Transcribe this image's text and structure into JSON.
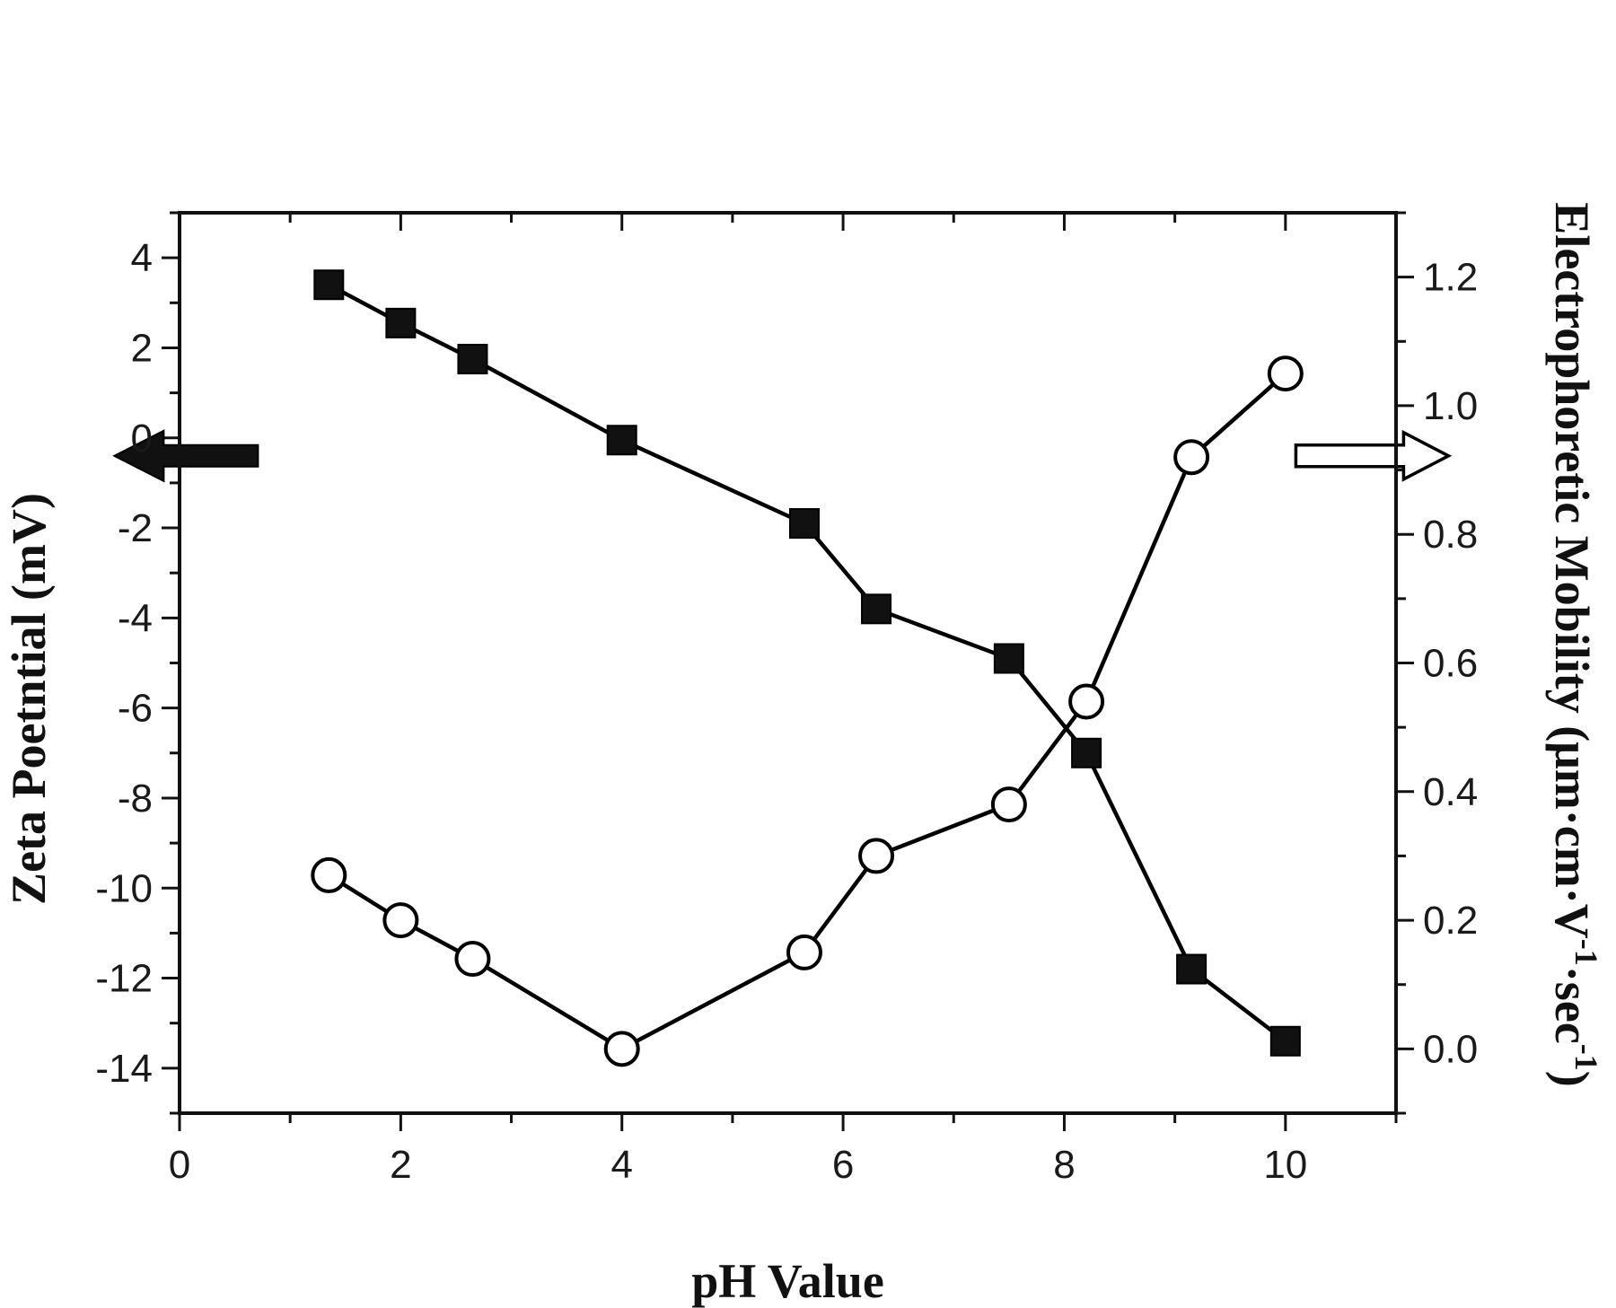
{
  "colors": {
    "axis": "#111111",
    "line": "#000000",
    "marker_fill_open": "#ffffff",
    "marker_fill_solid": "#111111"
  },
  "chart_data": {
    "type": "line",
    "xlabel": "pH Value",
    "ylabel_left": "Zeta Poetntial (mV)",
    "ylabel_right": "Electrophoretic Mobility (μm·cm·V⁻¹·sec⁻¹)",
    "ylabel_right_parts": {
      "main": "Electrophoretic Mobility (μm·cm·V",
      "sup1": "-1",
      "mid": "·sec",
      "sup2": "-1",
      "end": ")"
    },
    "xlim": [
      0,
      11
    ],
    "ylim_left": [
      -15,
      5
    ],
    "ylim_right": [
      -0.1,
      1.3
    ],
    "xticks": [
      0,
      2,
      4,
      6,
      8,
      10
    ],
    "yticks_left": [
      4,
      2,
      0,
      -2,
      -4,
      -6,
      -8,
      -10,
      -12,
      -14
    ],
    "yticks_right": [
      1.2,
      1.0,
      0.8,
      0.6,
      0.4,
      0.2,
      0.0
    ],
    "grid": false,
    "series": [
      {
        "axis": "left",
        "marker": "filled-square",
        "x": [
          1.35,
          2.0,
          2.65,
          4.0,
          5.65,
          6.3,
          7.5,
          8.2,
          9.15,
          10.0
        ],
        "y": [
          3.4,
          2.55,
          1.75,
          -0.05,
          -1.9,
          -3.8,
          -4.9,
          -7.0,
          -11.8,
          -13.4
        ]
      },
      {
        "axis": "right",
        "marker": "open-circle",
        "x": [
          1.35,
          2.0,
          2.65,
          4.0,
          5.65,
          6.3,
          7.5,
          8.2,
          9.15,
          10.0
        ],
        "y": [
          0.27,
          0.2,
          0.14,
          0.0,
          0.15,
          0.3,
          0.38,
          0.54,
          0.92,
          1.05
        ]
      }
    ],
    "annotations": [
      {
        "type": "arrow",
        "style": "filled",
        "direction": "left",
        "points_to": "left-axis",
        "at": {
          "x": 0.75,
          "y_left": -0.4
        }
      },
      {
        "type": "arrow",
        "style": "open",
        "direction": "right",
        "points_to": "right-axis",
        "at": {
          "x": 10.5,
          "y_left": -0.4
        }
      }
    ]
  }
}
